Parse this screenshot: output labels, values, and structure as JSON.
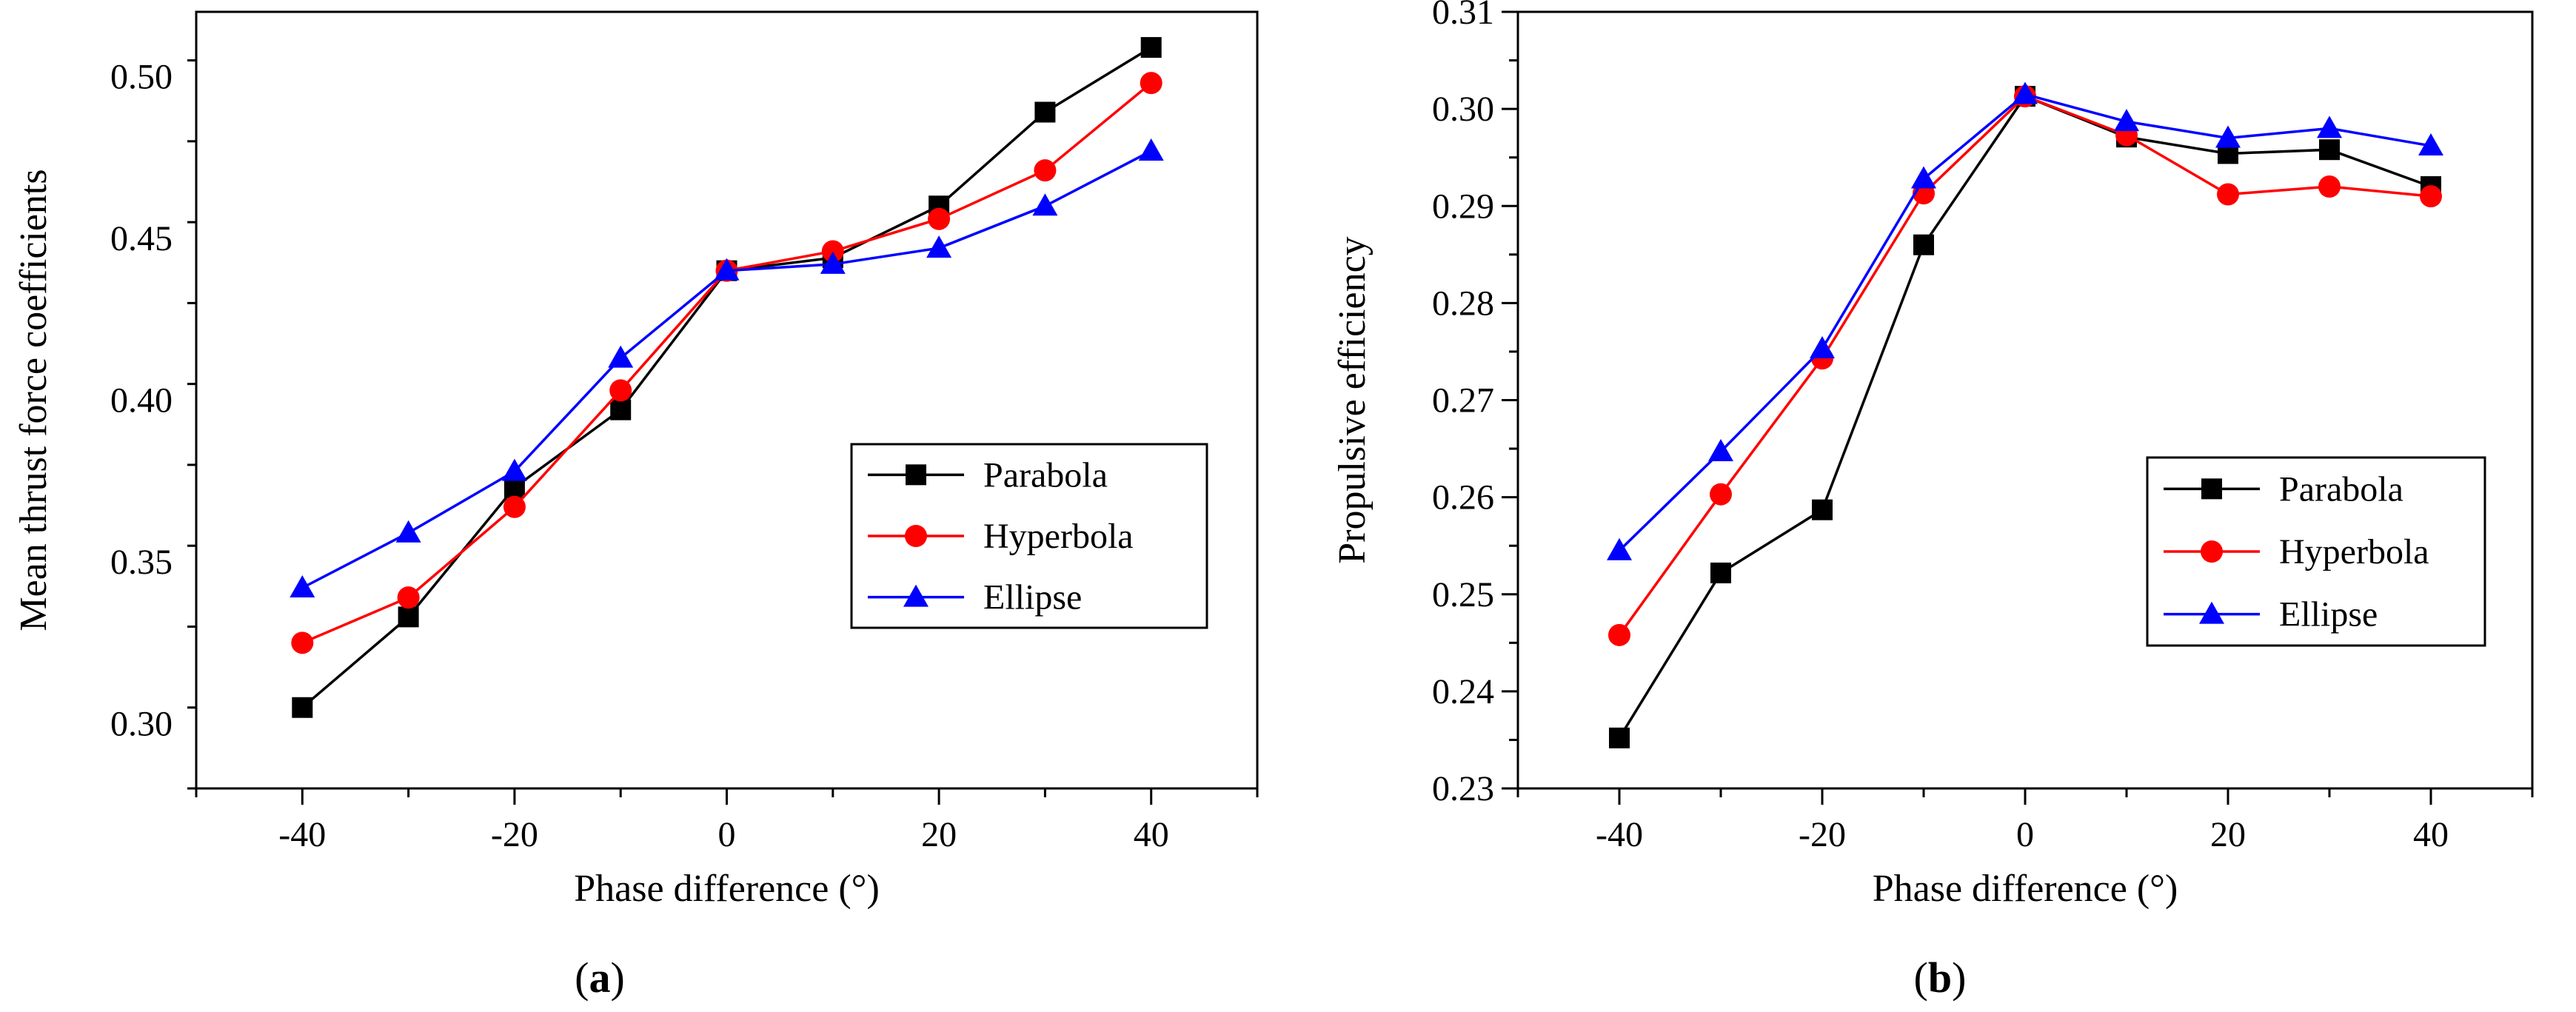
{
  "chart_data": [
    {
      "type": "line",
      "panel_label": {
        "open": "(",
        "letter": "a",
        "close": ")"
      },
      "xlabel": "Phase difference (°)",
      "ylabel": "Mean thrust force coefficients",
      "xlim": [
        -50,
        50
      ],
      "ylim": [
        0.28,
        0.52
      ],
      "xticks": [
        -40,
        -20,
        0,
        20,
        40
      ],
      "xtick_labels": [
        "-40",
        "-20",
        "0",
        "20",
        "40"
      ],
      "yticks": [
        0.3,
        0.35,
        0.4,
        0.45,
        0.5
      ],
      "ytick_labels": [
        "0.30",
        "0.35",
        "0.40",
        "0.45",
        "0.50"
      ],
      "x": [
        -40,
        -30,
        -20,
        -10,
        0,
        10,
        20,
        30,
        40
      ],
      "legend_position": "center-right",
      "series": [
        {
          "name": "Parabola",
          "color": "#000000",
          "marker": "square",
          "values": [
            0.305,
            0.333,
            0.373,
            0.397,
            0.44,
            0.444,
            0.46,
            0.489,
            0.509
          ]
        },
        {
          "name": "Hyperbola",
          "color": "#ff0000",
          "marker": "circle",
          "values": [
            0.325,
            0.339,
            0.367,
            0.403,
            0.44,
            0.446,
            0.456,
            0.471,
            0.498
          ]
        },
        {
          "name": "Ellipse",
          "color": "#0000ff",
          "marker": "triangle",
          "values": [
            0.342,
            0.359,
            0.378,
            0.413,
            0.44,
            0.442,
            0.447,
            0.46,
            0.477
          ]
        }
      ]
    },
    {
      "type": "line",
      "panel_label": {
        "open": "(",
        "letter": "b",
        "close": ")"
      },
      "xlabel": "Phase difference (°)",
      "ylabel": "Propulsive efficiency",
      "xlim": [
        -50,
        50
      ],
      "ylim": [
        0.23,
        0.31
      ],
      "xticks": [
        -40,
        -20,
        0,
        20,
        40
      ],
      "xtick_labels": [
        "-40",
        "-20",
        "0",
        "20",
        "40"
      ],
      "yticks": [
        0.23,
        0.24,
        0.25,
        0.26,
        0.27,
        0.28,
        0.29,
        0.3,
        0.31
      ],
      "ytick_labels": [
        "0.23",
        "0.24",
        "0.25",
        "0.26",
        "0.27",
        "0.28",
        "0.29",
        "0.30",
        "0.31"
      ],
      "x": [
        -40,
        -30,
        -20,
        -10,
        0,
        10,
        20,
        30,
        40
      ],
      "legend_position": "center-right",
      "series": [
        {
          "name": "Parabola",
          "color": "#000000",
          "marker": "square",
          "values": [
            0.2352,
            0.2522,
            0.2587,
            0.286,
            0.3013,
            0.2971,
            0.2954,
            0.2958,
            0.292
          ]
        },
        {
          "name": "Hyperbola",
          "color": "#ff0000",
          "marker": "circle",
          "values": [
            0.2458,
            0.2603,
            0.2743,
            0.2913,
            0.3013,
            0.2973,
            0.2912,
            0.292,
            0.291
          ]
        },
        {
          "name": "Ellipse",
          "color": "#0000ff",
          "marker": "triangle",
          "values": [
            0.2545,
            0.2647,
            0.2753,
            0.2928,
            0.3015,
            0.2987,
            0.297,
            0.298,
            0.2962
          ]
        }
      ]
    }
  ]
}
